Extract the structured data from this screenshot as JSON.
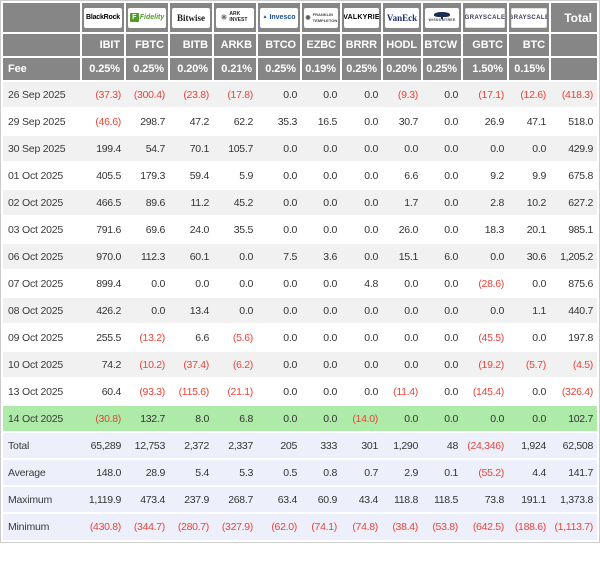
{
  "colors": {
    "header_gray": "#868686",
    "negative_red": "#e8443a",
    "highlight_green": "#aeeaa8",
    "summary_bg": "#edf0fa",
    "stripe_gray": "#f1f1f1",
    "frame_border": "#cccccc"
  },
  "icons": {
    "fidelity_f": "F",
    "ark_circle": "✳",
    "invesco_triangle": "▲",
    "franklin_head": "◉"
  },
  "table": {
    "total_label": "Total",
    "fee_label": "Fee",
    "columns": [
      {
        "provider": "BlackRock",
        "ticker": "IBIT",
        "fee": "0.25%",
        "logo": "blackrock"
      },
      {
        "provider": "Fidelity",
        "ticker": "FBTC",
        "fee": "0.25%",
        "logo": "fidelity"
      },
      {
        "provider": "Bitwise",
        "ticker": "BITB",
        "fee": "0.20%",
        "logo": "bitwise"
      },
      {
        "provider": "ARK INVEST",
        "ticker": "ARKB",
        "fee": "0.21%",
        "logo": "ark"
      },
      {
        "provider": "Invesco",
        "ticker": "BTCO",
        "fee": "0.25%",
        "logo": "invesco"
      },
      {
        "provider": "FRANKLIN TEMPLETON",
        "ticker": "EZBC",
        "fee": "0.19%",
        "logo": "franklin"
      },
      {
        "provider": "VALKYRIE",
        "ticker": "BRRR",
        "fee": "0.25%",
        "logo": "valkyrie"
      },
      {
        "provider": "VanEck",
        "ticker": "HODL",
        "fee": "0.20%",
        "logo": "vaneck"
      },
      {
        "provider": "WisdomTree",
        "ticker": "BTCW",
        "fee": "0.25%",
        "logo": "wisdomtree"
      },
      {
        "provider": "GRAYSCALE",
        "ticker": "GBTC",
        "fee": "1.50%",
        "logo": "grayscale"
      },
      {
        "provider": "GRAYSCALE",
        "ticker": "BTC",
        "fee": "0.15%",
        "logo": "grayscale"
      }
    ],
    "rows": [
      {
        "date": "26 Sep 2025",
        "values": [
          "(37.3)",
          "(300.4)",
          "(23.8)",
          "(17.8)",
          "0.0",
          "0.0",
          "0.0",
          "(9.3)",
          "0.0",
          "(17.1)",
          "(12.6)"
        ],
        "total": "(418.3)",
        "highlight": false
      },
      {
        "date": "29 Sep 2025",
        "values": [
          "(46.6)",
          "298.7",
          "47.2",
          "62.2",
          "35.3",
          "16.5",
          "0.0",
          "30.7",
          "0.0",
          "26.9",
          "47.1"
        ],
        "total": "518.0",
        "highlight": false
      },
      {
        "date": "30 Sep 2025",
        "values": [
          "199.4",
          "54.7",
          "70.1",
          "105.7",
          "0.0",
          "0.0",
          "0.0",
          "0.0",
          "0.0",
          "0.0",
          "0.0"
        ],
        "total": "429.9",
        "highlight": false
      },
      {
        "date": "01 Oct 2025",
        "values": [
          "405.5",
          "179.3",
          "59.4",
          "5.9",
          "0.0",
          "0.0",
          "0.0",
          "6.6",
          "0.0",
          "9.2",
          "9.9"
        ],
        "total": "675.8",
        "highlight": false
      },
      {
        "date": "02 Oct 2025",
        "values": [
          "466.5",
          "89.6",
          "11.2",
          "45.2",
          "0.0",
          "0.0",
          "0.0",
          "1.7",
          "0.0",
          "2.8",
          "10.2"
        ],
        "total": "627.2",
        "highlight": false
      },
      {
        "date": "03 Oct 2025",
        "values": [
          "791.6",
          "69.6",
          "24.0",
          "35.5",
          "0.0",
          "0.0",
          "0.0",
          "26.0",
          "0.0",
          "18.3",
          "20.1"
        ],
        "total": "985.1",
        "highlight": false
      },
      {
        "date": "06 Oct 2025",
        "values": [
          "970.0",
          "112.3",
          "60.1",
          "0.0",
          "7.5",
          "3.6",
          "0.0",
          "15.1",
          "6.0",
          "0.0",
          "30.6"
        ],
        "total": "1,205.2",
        "highlight": false
      },
      {
        "date": "07 Oct 2025",
        "values": [
          "899.4",
          "0.0",
          "0.0",
          "0.0",
          "0.0",
          "0.0",
          "4.8",
          "0.0",
          "0.0",
          "(28.6)",
          "0.0"
        ],
        "total": "875.6",
        "highlight": false
      },
      {
        "date": "08 Oct 2025",
        "values": [
          "426.2",
          "0.0",
          "13.4",
          "0.0",
          "0.0",
          "0.0",
          "0.0",
          "0.0",
          "0.0",
          "0.0",
          "1.1"
        ],
        "total": "440.7",
        "highlight": false
      },
      {
        "date": "09 Oct 2025",
        "values": [
          "255.5",
          "(13.2)",
          "6.6",
          "(5.6)",
          "0.0",
          "0.0",
          "0.0",
          "0.0",
          "0.0",
          "(45.5)",
          "0.0"
        ],
        "total": "197.8",
        "highlight": false
      },
      {
        "date": "10 Oct 2025",
        "values": [
          "74.2",
          "(10.2)",
          "(37.4)",
          "(6.2)",
          "0.0",
          "0.0",
          "0.0",
          "0.0",
          "0.0",
          "(19.2)",
          "(5.7)"
        ],
        "total": "(4.5)",
        "highlight": false
      },
      {
        "date": "13 Oct 2025",
        "values": [
          "60.4",
          "(93.3)",
          "(115.6)",
          "(21.1)",
          "0.0",
          "0.0",
          "0.0",
          "(11.4)",
          "0.0",
          "(145.4)",
          "0.0"
        ],
        "total": "(326.4)",
        "highlight": false
      },
      {
        "date": "14 Oct 2025",
        "values": [
          "(30.8)",
          "132.7",
          "8.0",
          "6.8",
          "0.0",
          "0.0",
          "(14.0)",
          "0.0",
          "0.0",
          "0.0",
          "0.0"
        ],
        "total": "102.7",
        "highlight": true
      }
    ],
    "summary": [
      {
        "label": "Total",
        "values": [
          "65,289",
          "12,753",
          "2,372",
          "2,337",
          "205",
          "333",
          "301",
          "1,290",
          "48",
          "(24,346)",
          "1,924"
        ],
        "total": "62,508"
      },
      {
        "label": "Average",
        "values": [
          "148.0",
          "28.9",
          "5.4",
          "5.3",
          "0.5",
          "0.8",
          "0.7",
          "2.9",
          "0.1",
          "(55.2)",
          "4.4"
        ],
        "total": "141.7"
      },
      {
        "label": "Maximum",
        "values": [
          "1,119.9",
          "473.4",
          "237.9",
          "268.7",
          "63.4",
          "60.9",
          "43.4",
          "118.8",
          "118.5",
          "73.8",
          "191.1"
        ],
        "total": "1,373.8"
      },
      {
        "label": "Minimum",
        "values": [
          "(430.8)",
          "(344.7)",
          "(280.7)",
          "(327.9)",
          "(62.0)",
          "(74.1)",
          "(74.8)",
          "(38.4)",
          "(53.8)",
          "(642.5)",
          "(188.6)"
        ],
        "total": "(1,113.7)"
      }
    ]
  }
}
